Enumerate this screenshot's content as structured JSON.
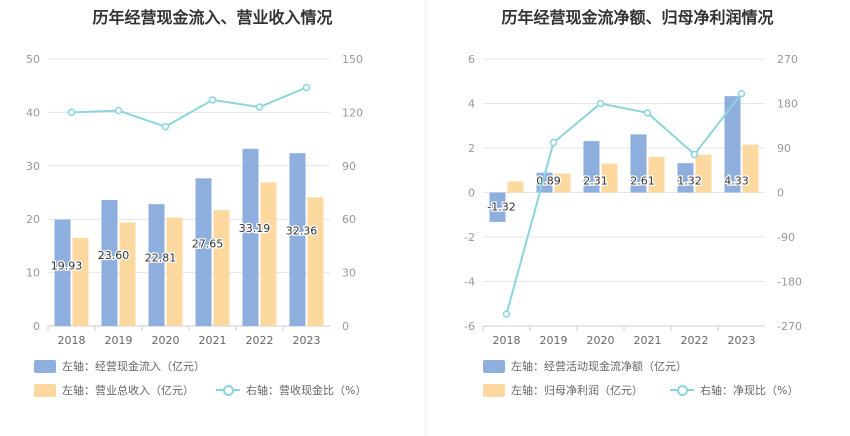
{
  "colors": {
    "bar1": "#8eaedd",
    "bar2": "#fdd9a0",
    "line": "#8dd5de",
    "grid": "#e6e6e6",
    "axis": "#999999",
    "label": "#333333"
  },
  "chart_data": [
    {
      "type": "bar",
      "title": "历年经营现金流入、营业收入情况",
      "categories": [
        "2018",
        "2019",
        "2020",
        "2021",
        "2022",
        "2023"
      ],
      "left_axis": {
        "ylim": [
          0,
          50
        ],
        "ticks": [
          "0",
          "10",
          "20",
          "30",
          "40",
          "50"
        ]
      },
      "right_axis": {
        "ylim": [
          0,
          150
        ],
        "ticks": [
          "0",
          "30",
          "60",
          "90",
          "120",
          "150"
        ]
      },
      "series": [
        {
          "name": "左轴：经营现金流入（亿元）",
          "type": "bar",
          "axis": "left",
          "values": [
            19.93,
            23.6,
            22.81,
            27.65,
            33.19,
            32.36
          ],
          "labels": [
            "19.93",
            "23.60",
            "22.81",
            "27.65",
            "33.19",
            "32.36"
          ]
        },
        {
          "name": "左轴：营业总收入（亿元）",
          "type": "bar",
          "axis": "left",
          "values": [
            16.5,
            19.4,
            20.3,
            21.7,
            26.9,
            24.1
          ]
        },
        {
          "name": "右轴：营收现金比（%）",
          "type": "line",
          "axis": "right",
          "values": [
            120,
            121,
            112,
            127,
            123,
            134
          ]
        }
      ],
      "grid": true,
      "legend": "bottom"
    },
    {
      "type": "bar",
      "title": "历年经营现金流净额、归母净利润情况",
      "categories": [
        "2018",
        "2019",
        "2020",
        "2021",
        "2022",
        "2023"
      ],
      "left_axis": {
        "ylim": [
          -6,
          6
        ],
        "ticks": [
          "-6",
          "-4",
          "-2",
          "0",
          "2",
          "4",
          "6"
        ]
      },
      "right_axis": {
        "ylim": [
          -270,
          270
        ],
        "ticks": [
          "-270",
          "-180",
          "-90",
          "0",
          "90",
          "180",
          "270"
        ]
      },
      "series": [
        {
          "name": "左轴：经营活动现金流净额（亿元）",
          "type": "bar",
          "axis": "left",
          "values": [
            -1.32,
            0.89,
            2.31,
            2.61,
            1.32,
            4.33
          ],
          "labels": [
            "-1.32",
            "0.89",
            "2.31",
            "2.61",
            "1.32",
            "4.33"
          ]
        },
        {
          "name": "左轴：归母净利润（亿元）",
          "type": "bar",
          "axis": "left",
          "values": [
            0.5,
            0.85,
            1.3,
            1.6,
            1.7,
            2.15
          ]
        },
        {
          "name": "右轴：净现比（%）",
          "type": "line",
          "axis": "right",
          "values": [
            -246,
            101,
            180,
            161,
            77,
            200
          ]
        }
      ],
      "grid": true,
      "legend": "bottom"
    }
  ]
}
